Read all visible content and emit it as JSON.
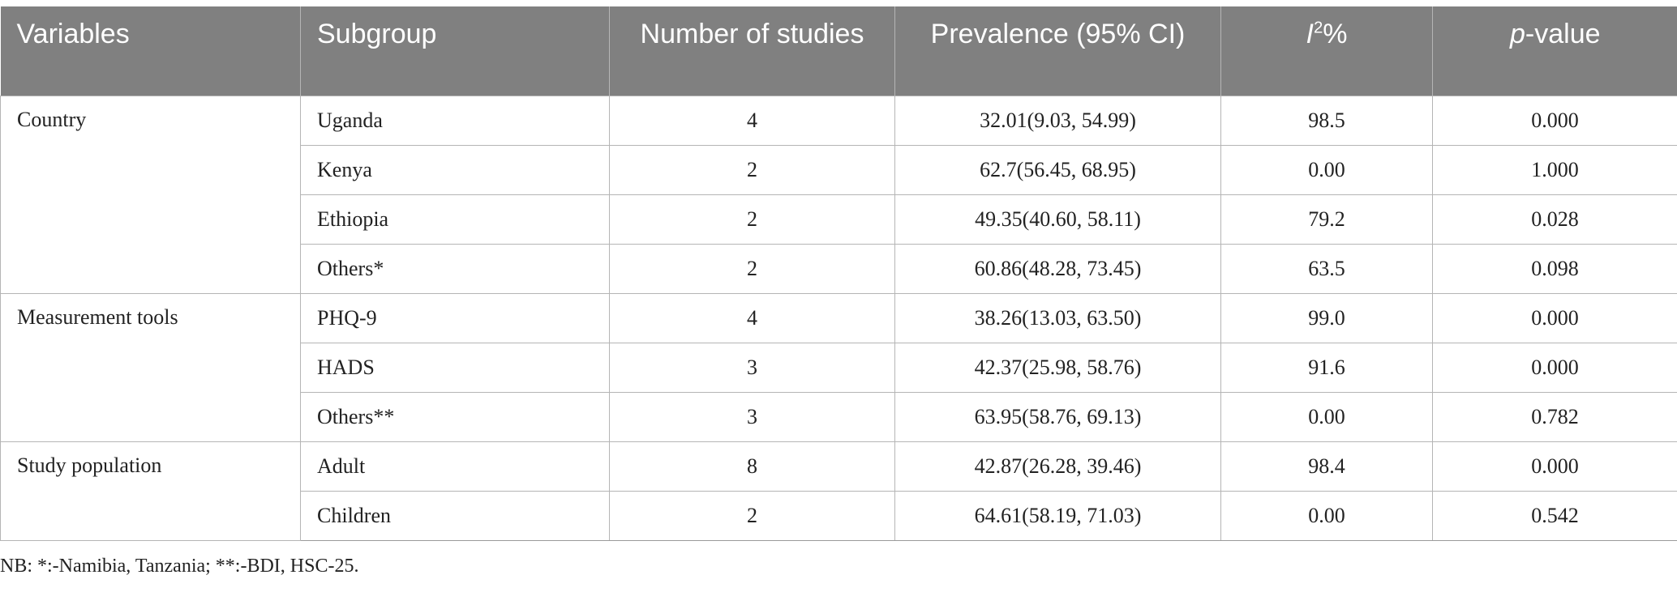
{
  "headers": {
    "variables": "Variables",
    "subgroup": "Subgroup",
    "number_of_studies": "Number of studies",
    "prevalence": "Prevalence (95% CI)",
    "i2_letter": "I",
    "i2_sup": "2",
    "i2_suffix": "%",
    "p_letter": "p",
    "p_suffix": "-value"
  },
  "groups": [
    {
      "variable": "Country",
      "rows": [
        {
          "subgroup": "Uganda",
          "n": "4",
          "prevalence": "32.01(9.03, 54.99)",
          "i2": "98.5",
          "p": "0.000"
        },
        {
          "subgroup": "Kenya",
          "n": "2",
          "prevalence": "62.7(56.45, 68.95)",
          "i2": "0.00",
          "p": "1.000"
        },
        {
          "subgroup": "Ethiopia",
          "n": "2",
          "prevalence": "49.35(40.60, 58.11)",
          "i2": "79.2",
          "p": "0.028"
        },
        {
          "subgroup": "Others*",
          "n": "2",
          "prevalence": "60.86(48.28, 73.45)",
          "i2": "63.5",
          "p": "0.098"
        }
      ]
    },
    {
      "variable": "Measurement tools",
      "rows": [
        {
          "subgroup": "PHQ-9",
          "n": "4",
          "prevalence": "38.26(13.03, 63.50)",
          "i2": "99.0",
          "p": "0.000"
        },
        {
          "subgroup": "HADS",
          "n": "3",
          "prevalence": "42.37(25.98, 58.76)",
          "i2": "91.6",
          "p": "0.000"
        },
        {
          "subgroup": "Others**",
          "n": "3",
          "prevalence": "63.95(58.76, 69.13)",
          "i2": "0.00",
          "p": "0.782"
        }
      ]
    },
    {
      "variable": "Study population",
      "rows": [
        {
          "subgroup": "Adult",
          "n": "8",
          "prevalence": "42.87(26.28, 39.46)",
          "i2": "98.4",
          "p": "0.000"
        },
        {
          "subgroup": "Children",
          "n": "2",
          "prevalence": "64.61(58.19, 71.03)",
          "i2": "0.00",
          "p": "0.542"
        }
      ]
    }
  ],
  "note": "NB: *:-Namibia, Tanzania; **:-BDI, HSC-25."
}
